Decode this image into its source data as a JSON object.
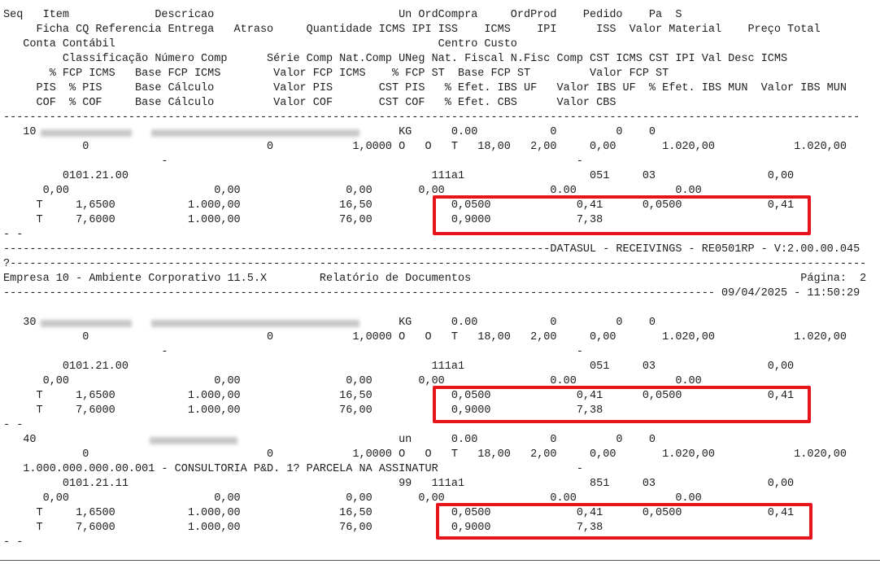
{
  "column_headers": [
    "Seq   Item             Descricao                            Un OrdCompra     OrdProd    Pedido    Pa  S",
    "     Ficha CQ Referencia Entrega   Atraso     Quantidade ICMS IPI ISS    ICMS    IPI      ISS  Valor Material    Preço Total",
    "   Conta Contábil                                                 Centro Custo",
    "         Classificação Número Comp      Série Comp Nat.Comp UNeg Nat. Fiscal N.Fisc Comp CST ICMS CST IPI Val Desc ICMS",
    "       % FCP ICMS   Base FCP ICMS        Valor FCP ICMS    % FCP ST  Base FCP ST         Valor FCP ST",
    "     PIS  % PIS     Base Cálculo         Valor PIS       CST PIS   % Efet. IBS UF   Valor IBS UF  % Efet. IBS MUN  Valor IBS MUN",
    "     COF  % COF     Base Cálculo         Valor COF       CST COF   % Efet. CBS      Valor CBS"
  ],
  "separator": "----------------------------------------------------------------------------------------------------------------------------------",
  "page_break": {
    "footer": "-----------------------------------------------------------------------------------DATASUL - RECEIVINGS - RE0501RP - V:2.00.00.045",
    "marker": "?----------------------------------------------------------------------------------------------------------------------------------",
    "company": "Empresa 10 - Ambiente Corporativo 11.5.X        Relatório de Documentos                                                  Página:  2",
    "date_line": "------------------------------------------------------------------------------------------------------------ 09/04/2025 - 11:50:29"
  },
  "items": [
    {
      "lines": [
        "   10                                                       KG      0.00           0         0    0",
        "            0                           0            1,0000 O   O   T   18,00   2,00     0,00       1.020,00            1.020,00",
        "                        -                                                              -",
        "         0101.21.00                                              111a1                   051     03                 0,00",
        "      0,00                      0,00                0,00       0,00                0.00               0.00",
        "     T     1,6500           1.000,00               16,50            0,0500             0,41      0,0500             0,41",
        "     T     7,6000           1.000,00               76,00            0,9000             7,38",
        "- -"
      ]
    },
    {
      "lines": [
        "   30                                                       KG      0.00           0         0    0",
        "            0                           0            1,0000 O   O   T   18,00   2,00     0,00       1.020,00            1.020,00",
        "                        -                                                              -",
        "         0101.21.00                                              111a1                   051     03                 0,00",
        "      0,00                      0,00                0,00       0,00                0.00               0.00",
        "     T     1,6500           1.000,00               16,50            0,0500             0,41      0,0500             0,41",
        "     T     7,6000           1.000,00               76,00            0,9000             7,38",
        "- -"
      ]
    },
    {
      "lines": [
        "   40                                                       un      0.00           0         0    0",
        "            0                           0            1,0000 O   O   T   18,00   2,00     0,00       1.020,00            1.020,00",
        "   1.000.000.000.00.001 - CONSULTORIA P&D. 1? PARCELA NA ASSINATUR                     -",
        "         0101.21.11                                         99   111a1                   851     03                 0,00",
        "      0,00                      0,00                0,00       0,00                0.00               0.00",
        "     T     1,6500           1.000,00               16,50            0,0500             0,41      0,0500             0,41",
        "     T     7,6000           1.000,00               76,00            0,9000             7,38",
        "- -"
      ]
    }
  ]
}
